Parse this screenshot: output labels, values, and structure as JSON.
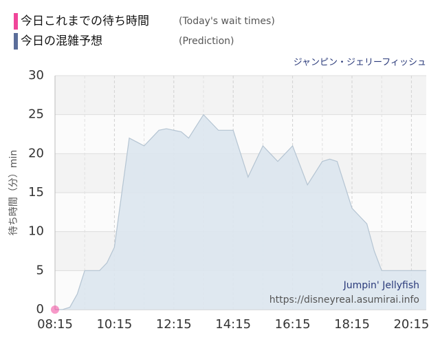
{
  "chart_data": {
    "type": "area",
    "subtitle": "ジャンピン・ジェリーフィッシュ",
    "ylabel": "待ち時間（分）min",
    "annotations": [
      "Jumpin' Jellyfish",
      "https://disneyreal.asumirai.info"
    ],
    "series": [
      {
        "name": "今日これまでの待ち時間",
        "note": "(Today's wait times)",
        "color": "#f0469a",
        "kind": "point",
        "x": [
          495
        ],
        "values": [
          0
        ]
      },
      {
        "name": "今日の混雑予想",
        "note": "(Prediction)",
        "color": "#5b6e9a",
        "kind": "area",
        "fill": "#dce6ee",
        "stroke": "#b4c4d2",
        "x": [
          495,
          510,
          525,
          540,
          555,
          570,
          585,
          600,
          615,
          630,
          645,
          660,
          675,
          690,
          705,
          720,
          735,
          750,
          765,
          780,
          795,
          810,
          825,
          840,
          855,
          870,
          885,
          900,
          915,
          930,
          945,
          960,
          975,
          990,
          1005,
          1020,
          1035,
          1050,
          1065,
          1080,
          1095,
          1110,
          1125,
          1140,
          1155,
          1170,
          1185,
          1200,
          1215,
          1230,
          1245
        ],
        "values": [
          0,
          0,
          0.3,
          2,
          5,
          5,
          5,
          6,
          8,
          15,
          22,
          21.5,
          21,
          22,
          23,
          23.2,
          23,
          22.8,
          22,
          23.5,
          25,
          24,
          23,
          23,
          23,
          20,
          17,
          19,
          21,
          20,
          19,
          20,
          21,
          18.5,
          16,
          17.5,
          19,
          19.3,
          19,
          16,
          13,
          12,
          11,
          7.5,
          5,
          5,
          5,
          5,
          5,
          5,
          5
        ]
      }
    ],
    "xlim": [
      495,
      1245
    ],
    "xticks": [
      {
        "value": 495,
        "label": "08:15"
      },
      {
        "value": 615,
        "label": "10:15"
      },
      {
        "value": 735,
        "label": "12:15"
      },
      {
        "value": 855,
        "label": "14:15"
      },
      {
        "value": 975,
        "label": "16:15"
      },
      {
        "value": 1095,
        "label": "18:15"
      },
      {
        "value": 1215,
        "label": "20:15"
      }
    ],
    "xminor": [
      555,
      675,
      795,
      915,
      1035,
      1155
    ],
    "ylim": [
      0,
      30
    ],
    "yticks": [
      0,
      5,
      10,
      15,
      20,
      25,
      30
    ],
    "grid": true
  }
}
